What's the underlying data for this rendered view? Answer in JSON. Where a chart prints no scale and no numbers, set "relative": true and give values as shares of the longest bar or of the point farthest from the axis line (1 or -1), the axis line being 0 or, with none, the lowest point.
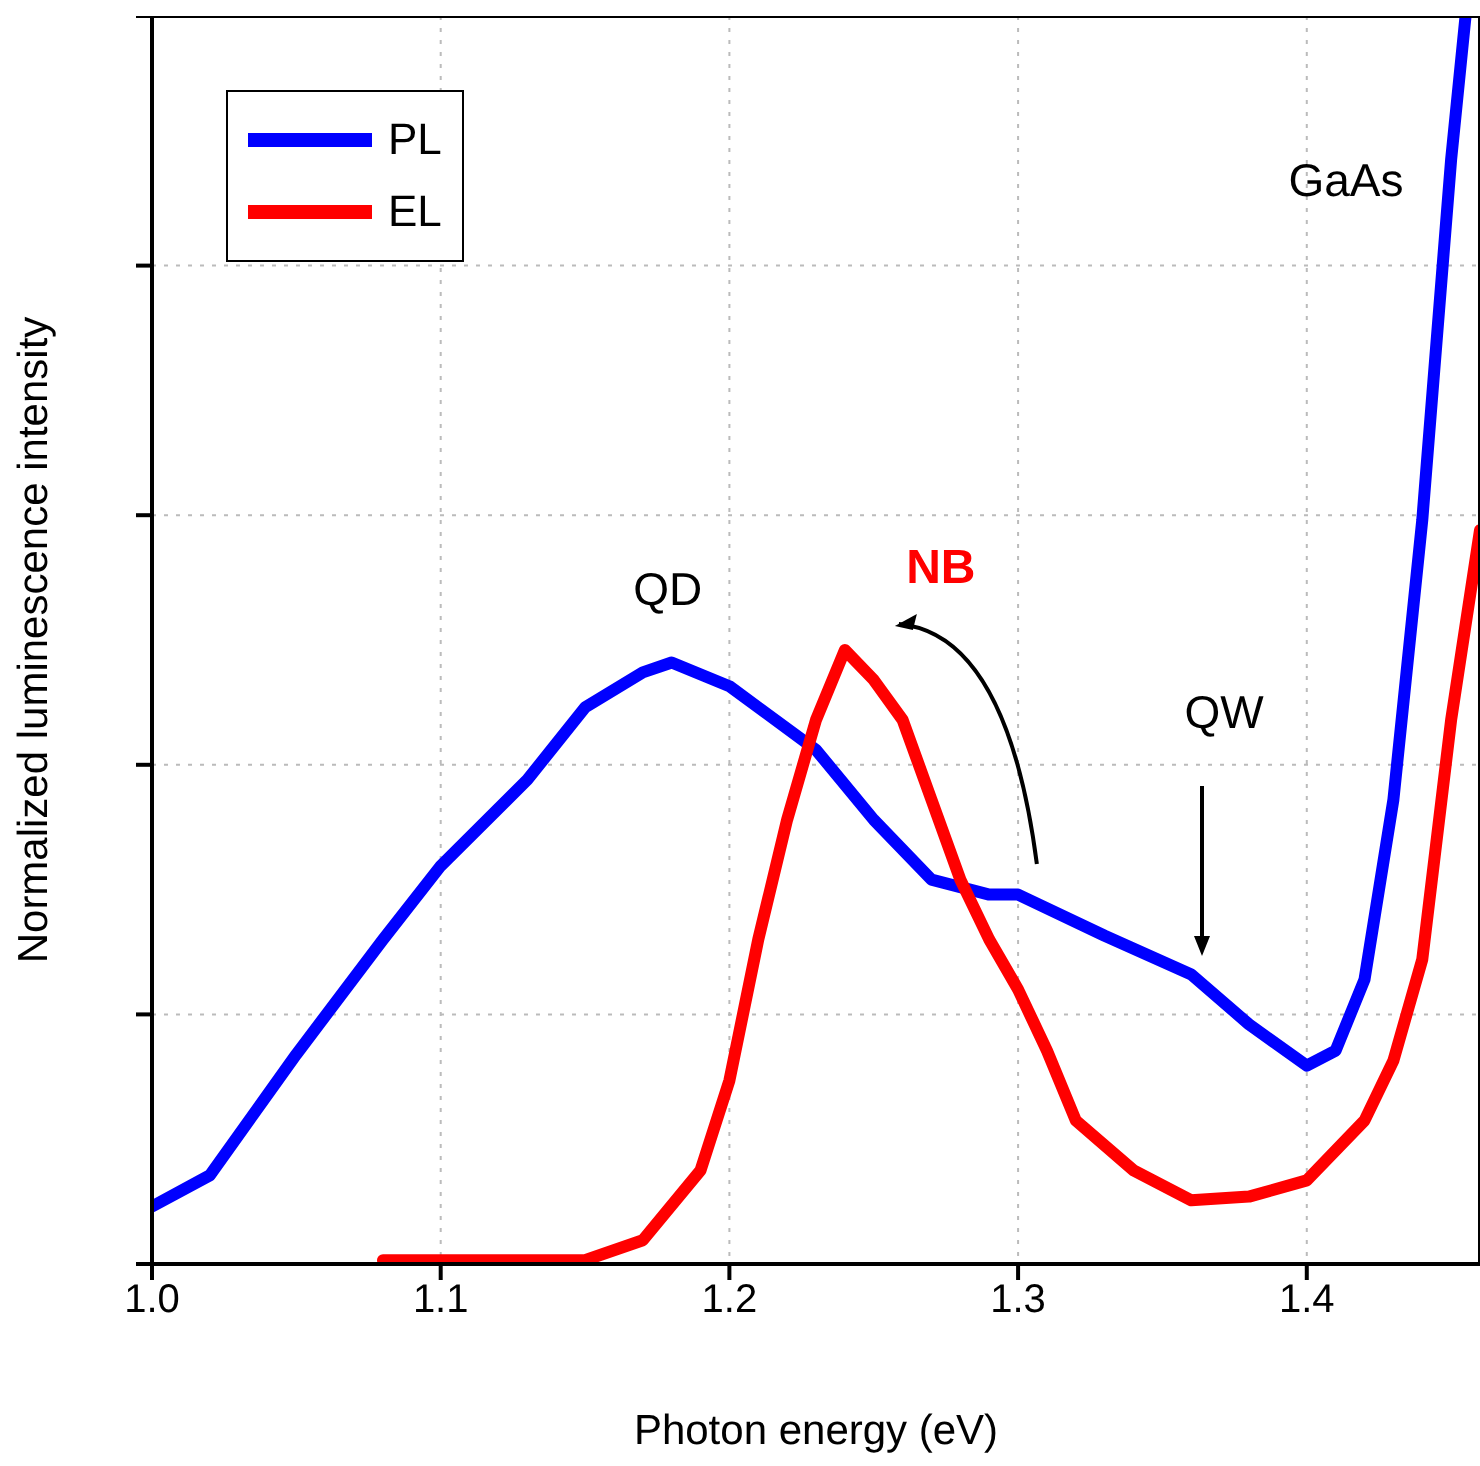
{
  "chart_data": {
    "type": "line",
    "xlabel": "Photon energy (eV)",
    "ylabel": "Normalized luminescence intensity",
    "relative": true,
    "xlim": [
      1.0,
      1.46
    ],
    "xticks": [
      {
        "value": 1.0,
        "label": "1.0"
      },
      {
        "value": 1.1,
        "label": "1.1"
      },
      {
        "value": 1.2,
        "label": "1.2"
      },
      {
        "value": 1.3,
        "label": "1.3"
      },
      {
        "value": 1.4,
        "label": "1.4"
      }
    ],
    "grid": true,
    "legend": "top left",
    "marker": "none",
    "line_style": "solid",
    "series": [
      {
        "name": "PL",
        "color": "#0000ff",
        "x": [
          1.0,
          1.02,
          1.05,
          1.08,
          1.1,
          1.13,
          1.15,
          1.17,
          1.18,
          1.2,
          1.23,
          1.25,
          1.27,
          1.29,
          1.3,
          1.33,
          1.36,
          1.38,
          1.4,
          1.41,
          1.42,
          1.43,
          1.44,
          1.45,
          1.455
        ],
        "values": [
          0.046,
          0.071,
          0.168,
          0.26,
          0.319,
          0.388,
          0.446,
          0.474,
          0.482,
          0.463,
          0.412,
          0.356,
          0.308,
          0.296,
          0.296,
          0.263,
          0.232,
          0.192,
          0.159,
          0.171,
          0.228,
          0.372,
          0.596,
          0.885,
          1.0
        ]
      },
      {
        "name": "EL",
        "color": "#ff0000",
        "x": [
          1.08,
          1.15,
          1.17,
          1.19,
          1.2,
          1.21,
          1.22,
          1.23,
          1.24,
          1.25,
          1.26,
          1.27,
          1.28,
          1.29,
          1.3,
          1.31,
          1.32,
          1.34,
          1.36,
          1.38,
          1.4,
          1.42,
          1.43,
          1.44,
          1.45,
          1.46
        ],
        "values": [
          0.003,
          0.003,
          0.019,
          0.075,
          0.147,
          0.26,
          0.356,
          0.436,
          0.492,
          0.468,
          0.436,
          0.372,
          0.308,
          0.26,
          0.22,
          0.171,
          0.115,
          0.075,
          0.051,
          0.054,
          0.067,
          0.115,
          0.163,
          0.244,
          0.436,
          0.588
        ]
      }
    ],
    "annotations": [
      {
        "text": "QD",
        "x": 1.18,
        "y": 0.482
      },
      {
        "text": "NB",
        "x": 1.24,
        "y": 0.492
      },
      "QW",
      "GaAs"
    ]
  }
}
